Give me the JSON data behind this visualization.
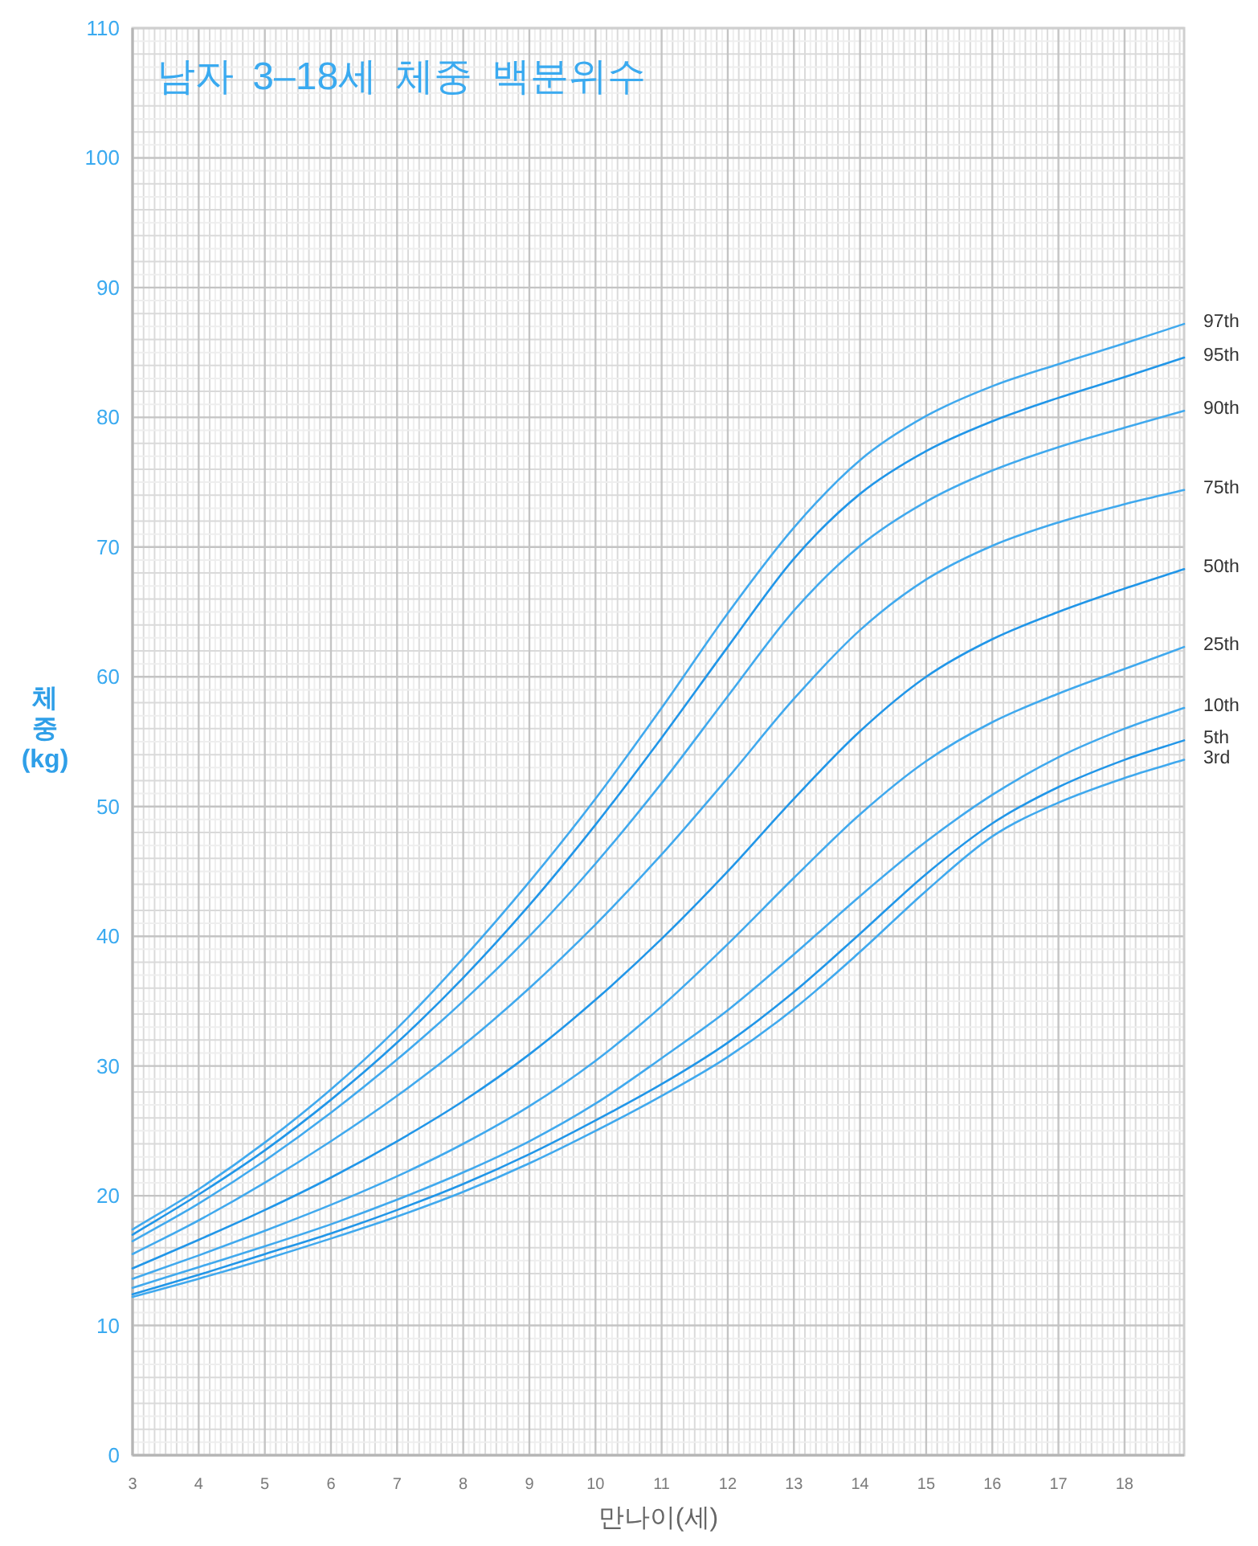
{
  "chart_data": {
    "type": "line",
    "title": "남자 3–18세 체중 백분위수",
    "xlabel": "만나이(세)",
    "ylabel": "체\n중\n(kg)",
    "x": [
      3,
      4,
      5,
      6,
      7,
      8,
      9,
      10,
      11,
      12,
      13,
      14,
      15,
      16,
      17,
      18,
      18.9
    ],
    "xlim": [
      3,
      18.9
    ],
    "xticks": [
      3,
      4,
      5,
      6,
      7,
      8,
      9,
      10,
      11,
      12,
      13,
      14,
      15,
      16,
      17,
      18
    ],
    "ylim": [
      0,
      110
    ],
    "yticks": [
      0,
      10,
      20,
      30,
      40,
      50,
      60,
      70,
      80,
      90,
      100,
      110
    ],
    "grid": true,
    "series": [
      {
        "name": "97th",
        "color": "#40a9ee",
        "values": [
          17.4,
          20.5,
          24.1,
          28.2,
          32.9,
          38.3,
          44.2,
          50.6,
          57.6,
          64.9,
          71.5,
          76.7,
          80.1,
          82.4,
          84.1,
          85.7,
          87.2
        ]
      },
      {
        "name": "95th",
        "color": "#2196e8",
        "values": [
          17.0,
          20.1,
          23.5,
          27.4,
          31.8,
          36.8,
          42.4,
          48.6,
          55.3,
          62.3,
          69.1,
          74.1,
          77.4,
          79.7,
          81.5,
          83.1,
          84.6
        ]
      },
      {
        "name": "90th",
        "color": "#40a9ee",
        "values": [
          16.5,
          19.4,
          22.7,
          26.4,
          30.5,
          35.0,
          40.0,
          45.6,
          51.8,
          58.5,
          65.1,
          70.1,
          73.5,
          75.9,
          77.7,
          79.2,
          80.5
        ]
      },
      {
        "name": "75th",
        "color": "#40a9ee",
        "values": [
          15.5,
          18.1,
          21.0,
          24.2,
          27.7,
          31.6,
          36.0,
          40.9,
          46.3,
          52.2,
          58.3,
          63.6,
          67.5,
          70.1,
          71.9,
          73.3,
          74.4
        ]
      },
      {
        "name": "50th",
        "color": "#2196e8",
        "values": [
          14.4,
          16.6,
          18.9,
          21.4,
          24.2,
          27.3,
          30.9,
          35.1,
          39.8,
          45.0,
          50.6,
          55.8,
          60.0,
          62.9,
          65.0,
          66.8,
          68.3
        ]
      },
      {
        "name": "25th",
        "color": "#40a9ee",
        "values": [
          13.6,
          15.4,
          17.3,
          19.3,
          21.5,
          24.0,
          26.9,
          30.4,
          34.6,
          39.4,
          44.5,
          49.4,
          53.5,
          56.5,
          58.7,
          60.6,
          62.3
        ]
      },
      {
        "name": "10th",
        "color": "#40a9ee",
        "values": [
          12.9,
          14.5,
          16.1,
          17.8,
          19.7,
          21.8,
          24.2,
          27.1,
          30.6,
          34.3,
          38.6,
          43.1,
          47.3,
          50.9,
          53.8,
          56.0,
          57.6
        ]
      },
      {
        "name": "5th",
        "color": "#2196e8",
        "values": [
          12.4,
          13.9,
          15.5,
          17.1,
          18.9,
          20.9,
          23.2,
          25.8,
          28.6,
          31.8,
          35.7,
          40.2,
          44.8,
          48.7,
          51.5,
          53.6,
          55.1
        ]
      },
      {
        "name": "3rd",
        "color": "#40a9ee",
        "values": [
          12.2,
          13.6,
          15.1,
          16.7,
          18.4,
          20.3,
          22.5,
          25.0,
          27.7,
          30.7,
          34.4,
          38.8,
          43.5,
          47.7,
          50.3,
          52.2,
          53.6
        ]
      }
    ]
  }
}
